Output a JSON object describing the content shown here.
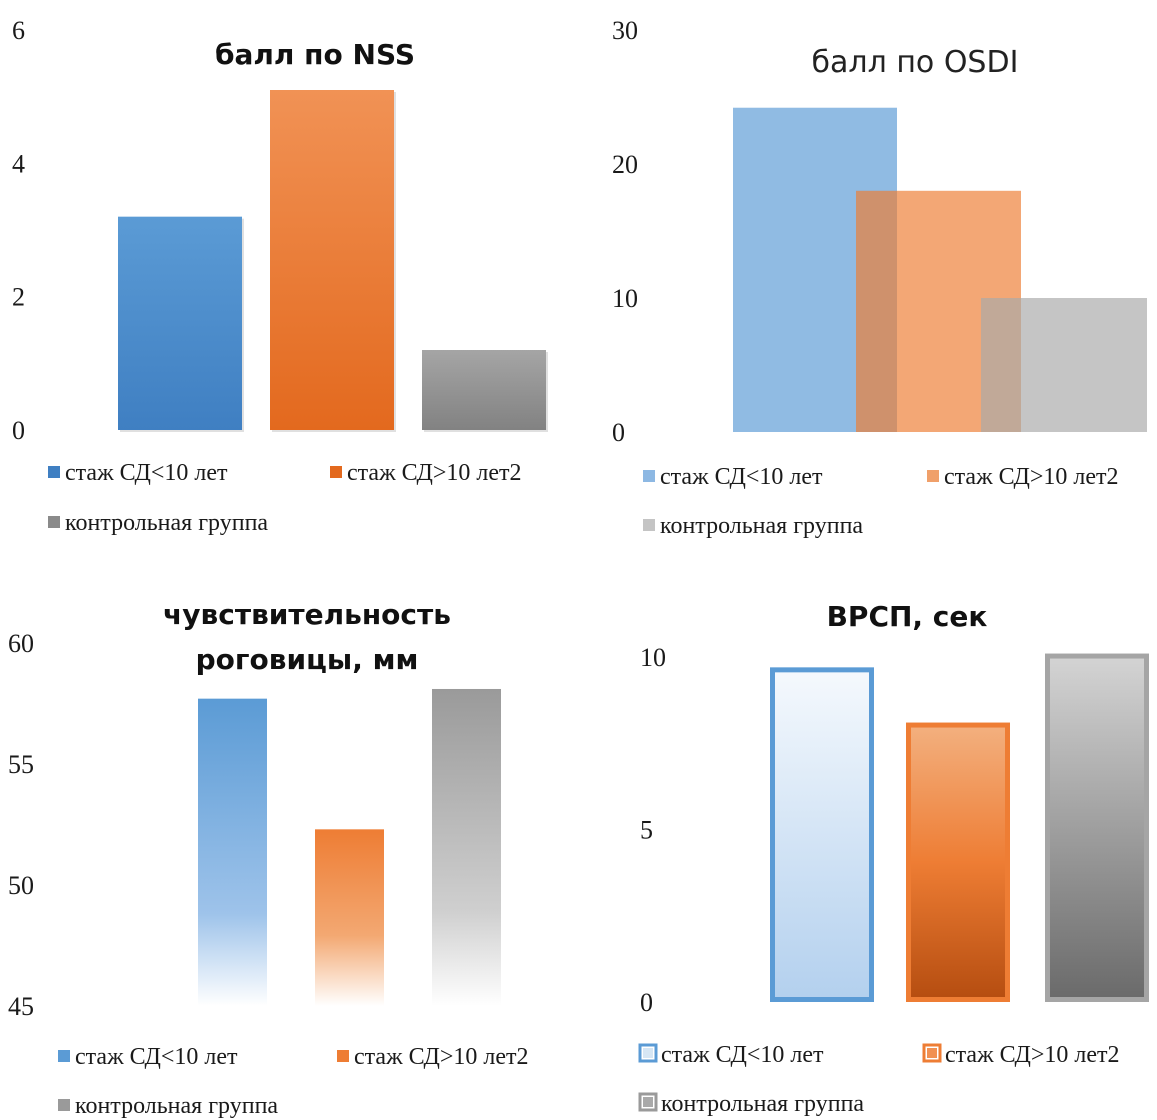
{
  "colors": {
    "blue": "#4a8fd4",
    "orange": "#ee7a2c",
    "gray": "#8f8f8f",
    "blue_light": "#8db8e3",
    "orange_light": "#f0a06a",
    "gray_light": "#bdbdbd"
  },
  "chart_data": [
    {
      "type": "bar",
      "title": "балл по NSS",
      "categories": [
        "стаж СД<10 лет",
        "стаж СД>10 лет2",
        "контрольная группа"
      ],
      "values": [
        3.2,
        5.1,
        1.2
      ],
      "ylim": [
        0,
        6
      ],
      "yticks": [
        "0",
        "2",
        "4",
        "6"
      ],
      "legend": [
        "стаж СД<10 лет",
        "стаж СД>10 лет2",
        "контрольная группа"
      ],
      "legend_position": "bottom",
      "style": "solid-gradient"
    },
    {
      "type": "bar",
      "title": "балл по OSDI",
      "categories": [
        "стаж СД<10 лет",
        "стаж СД>10 лет2",
        "контрольная группа"
      ],
      "values": [
        24.2,
        18.0,
        10.0
      ],
      "ylim": [
        0,
        30
      ],
      "yticks": [
        "0",
        "10",
        "20",
        "30"
      ],
      "legend": [
        "стаж СД<10 лет",
        "стаж СД>10 лет2",
        "контрольная группа"
      ],
      "legend_position": "bottom",
      "style": "overlapping-translucent"
    },
    {
      "type": "bar",
      "title": "чувствительность роговицы, мм",
      "title_lines": [
        "чувствительность",
        "роговицы, мм"
      ],
      "categories": [
        "стаж СД<10 лет",
        "стаж СД>10 лет2",
        "контрольная группа"
      ],
      "values": [
        57.7,
        52.3,
        58.1
      ],
      "ylim": [
        45,
        60
      ],
      "yticks": [
        "45",
        "50",
        "55",
        "60"
      ],
      "legend": [
        "стаж СД<10 лет",
        "стаж СД>10 лет2",
        "контрольная группа"
      ],
      "legend_position": "bottom",
      "style": "fade-gradient"
    },
    {
      "type": "bar",
      "title": "ВРСП, сек",
      "categories": [
        "стаж СД<10 лет",
        "стаж СД>10 лет2",
        "контрольная группа"
      ],
      "values": [
        9.7,
        8.1,
        10.1
      ],
      "ylim": [
        0,
        10
      ],
      "yticks": [
        "0",
        "5",
        "10"
      ],
      "legend": [
        "стаж СД<10 лет",
        "стаж СД>10 лет2",
        "контрольная группа"
      ],
      "legend_position": "bottom",
      "style": "outlined-gradient"
    }
  ]
}
